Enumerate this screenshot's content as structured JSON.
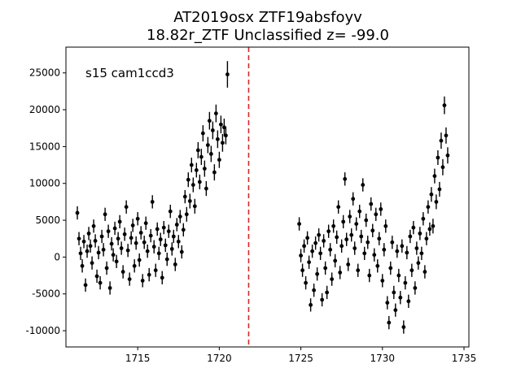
{
  "chart_data": {
    "type": "scatter",
    "title": "AT2019osx  ZTF19absfoyv",
    "subtitle": "18.82r_ZTF Unclassified z= -99.0",
    "annotation": "s15 cam1ccd3",
    "xlabel": "",
    "ylabel": "",
    "xlim": [
      1710.6,
      1735.3
    ],
    "ylim": [
      -12200,
      28500
    ],
    "x_ticks": [
      1715,
      1720,
      1725,
      1730,
      1735
    ],
    "y_ticks": [
      -10000,
      -5000,
      0,
      5000,
      10000,
      15000,
      20000,
      25000
    ],
    "grid": false,
    "marker_color": "#000000",
    "vline": {
      "x": 1721.8,
      "color": "#d62728",
      "style": "dashed"
    },
    "series": [
      {
        "points": [
          [
            1711.3,
            6000,
            900
          ],
          [
            1711.4,
            2500,
            900
          ],
          [
            1711.5,
            500,
            900
          ],
          [
            1711.6,
            -1200,
            900
          ],
          [
            1711.7,
            2100,
            900
          ],
          [
            1711.8,
            -3800,
            900
          ],
          [
            1711.9,
            800,
            900
          ],
          [
            1712.0,
            3200,
            900
          ],
          [
            1712.1,
            1500,
            900
          ],
          [
            1712.2,
            -800,
            900
          ],
          [
            1712.3,
            4200,
            900
          ],
          [
            1712.4,
            2200,
            900
          ],
          [
            1712.5,
            -2600,
            900
          ],
          [
            1712.6,
            600,
            900
          ],
          [
            1712.7,
            -3500,
            900
          ],
          [
            1712.8,
            2800,
            900
          ],
          [
            1712.9,
            1000,
            900
          ],
          [
            1713.0,
            5800,
            900
          ],
          [
            1713.1,
            -1500,
            900
          ],
          [
            1713.2,
            3500,
            900
          ],
          [
            1713.3,
            -4200,
            900
          ],
          [
            1713.4,
            1800,
            900
          ],
          [
            1713.5,
            300,
            900
          ],
          [
            1713.6,
            3900,
            900
          ],
          [
            1713.7,
            -600,
            900
          ],
          [
            1713.8,
            2500,
            900
          ],
          [
            1713.9,
            4800,
            900
          ],
          [
            1714.0,
            1200,
            900
          ],
          [
            1714.1,
            -2000,
            900
          ],
          [
            1714.2,
            3100,
            900
          ],
          [
            1714.3,
            6800,
            900
          ],
          [
            1714.4,
            900,
            900
          ],
          [
            1714.5,
            -3000,
            900
          ],
          [
            1714.6,
            2600,
            900
          ],
          [
            1714.7,
            4300,
            900
          ],
          [
            1714.8,
            -1200,
            900
          ],
          [
            1714.9,
            1900,
            900
          ],
          [
            1715.0,
            5200,
            900
          ],
          [
            1715.1,
            -400,
            900
          ],
          [
            1715.2,
            3300,
            900
          ],
          [
            1715.3,
            -3200,
            900
          ],
          [
            1715.4,
            2000,
            900
          ],
          [
            1715.5,
            4600,
            900
          ],
          [
            1715.6,
            800,
            900
          ],
          [
            1715.7,
            -2400,
            900
          ],
          [
            1715.8,
            2900,
            900
          ],
          [
            1715.9,
            7500,
            900
          ],
          [
            1716.0,
            1400,
            900
          ],
          [
            1716.1,
            -1800,
            900
          ],
          [
            1716.2,
            3800,
            900
          ],
          [
            1716.3,
            500,
            900
          ],
          [
            1716.4,
            2400,
            900
          ],
          [
            1716.5,
            -2800,
            900
          ],
          [
            1716.6,
            4000,
            900
          ],
          [
            1716.7,
            1600,
            900
          ],
          [
            1716.8,
            -300,
            900
          ],
          [
            1716.9,
            3500,
            900
          ],
          [
            1717.0,
            6200,
            900
          ],
          [
            1717.1,
            1100,
            900
          ],
          [
            1717.2,
            2800,
            900
          ],
          [
            1717.3,
            -1000,
            900
          ],
          [
            1717.4,
            4400,
            900
          ],
          [
            1717.5,
            2100,
            900
          ],
          [
            1717.6,
            5500,
            900
          ],
          [
            1717.7,
            700,
            900
          ],
          [
            1717.8,
            3700,
            900
          ],
          [
            1717.9,
            8200,
            900
          ],
          [
            1718.0,
            5800,
            1000
          ],
          [
            1718.1,
            10500,
            1000
          ],
          [
            1718.2,
            7600,
            1000
          ],
          [
            1718.3,
            12500,
            1000
          ],
          [
            1718.4,
            9800,
            1000
          ],
          [
            1718.5,
            6900,
            1000
          ],
          [
            1718.6,
            11800,
            1000
          ],
          [
            1718.7,
            14500,
            1100
          ],
          [
            1718.8,
            10200,
            1000
          ],
          [
            1718.9,
            13600,
            1100
          ],
          [
            1719.0,
            16800,
            1100
          ],
          [
            1719.1,
            12000,
            1100
          ],
          [
            1719.2,
            9300,
            1000
          ],
          [
            1719.3,
            15200,
            1100
          ],
          [
            1719.4,
            18500,
            1200
          ],
          [
            1719.5,
            14000,
            1100
          ],
          [
            1719.6,
            17200,
            1200
          ],
          [
            1719.7,
            11500,
            1100
          ],
          [
            1719.8,
            19500,
            1200
          ],
          [
            1719.9,
            16000,
            1200
          ],
          [
            1720.0,
            13200,
            1100
          ],
          [
            1720.1,
            18000,
            1200
          ],
          [
            1720.2,
            15500,
            1200
          ],
          [
            1720.3,
            17600,
            1200
          ],
          [
            1720.4,
            16500,
            1200
          ],
          [
            1720.5,
            24800,
            1800
          ],
          [
            1724.9,
            4500,
            900
          ],
          [
            1725.0,
            200,
            900
          ],
          [
            1725.1,
            -1800,
            900
          ],
          [
            1725.2,
            1500,
            900
          ],
          [
            1725.3,
            -3500,
            900
          ],
          [
            1725.4,
            2600,
            900
          ],
          [
            1725.5,
            -700,
            900
          ],
          [
            1725.6,
            -6500,
            900
          ],
          [
            1725.7,
            800,
            900
          ],
          [
            1725.8,
            -4500,
            900
          ],
          [
            1725.9,
            1900,
            900
          ],
          [
            1726.0,
            -2300,
            900
          ],
          [
            1726.1,
            3000,
            900
          ],
          [
            1726.2,
            500,
            900
          ],
          [
            1726.3,
            -5800,
            900
          ],
          [
            1726.4,
            2200,
            900
          ],
          [
            1726.5,
            -1500,
            900
          ],
          [
            1726.6,
            -4800,
            900
          ],
          [
            1726.7,
            3500,
            900
          ],
          [
            1726.8,
            1000,
            900
          ],
          [
            1726.9,
            -3000,
            900
          ],
          [
            1727.0,
            4200,
            900
          ],
          [
            1727.1,
            -500,
            900
          ],
          [
            1727.2,
            2700,
            900
          ],
          [
            1727.3,
            6800,
            900
          ],
          [
            1727.4,
            -2100,
            900
          ],
          [
            1727.5,
            1500,
            900
          ],
          [
            1727.6,
            4800,
            900
          ],
          [
            1727.7,
            10600,
            900
          ],
          [
            1727.8,
            2400,
            900
          ],
          [
            1727.9,
            -1000,
            900
          ],
          [
            1728.0,
            5500,
            900
          ],
          [
            1728.1,
            3000,
            900
          ],
          [
            1728.2,
            7900,
            900
          ],
          [
            1728.3,
            1200,
            900
          ],
          [
            1728.4,
            4500,
            900
          ],
          [
            1728.5,
            -1800,
            900
          ],
          [
            1728.6,
            6200,
            900
          ],
          [
            1728.7,
            2800,
            900
          ],
          [
            1728.8,
            9800,
            900
          ],
          [
            1728.9,
            500,
            900
          ],
          [
            1729.0,
            5000,
            900
          ],
          [
            1729.1,
            2000,
            900
          ],
          [
            1729.2,
            -2500,
            900
          ],
          [
            1729.3,
            7200,
            900
          ],
          [
            1729.4,
            3600,
            900
          ],
          [
            1729.5,
            300,
            900
          ],
          [
            1729.6,
            5800,
            900
          ],
          [
            1729.7,
            -1200,
            900
          ],
          [
            1729.8,
            2500,
            900
          ],
          [
            1729.9,
            6500,
            900
          ],
          [
            1730.0,
            -3200,
            900
          ],
          [
            1730.1,
            1000,
            900
          ],
          [
            1730.2,
            4200,
            900
          ],
          [
            1730.3,
            -6200,
            900
          ],
          [
            1730.4,
            -8900,
            900
          ],
          [
            1730.5,
            -1500,
            900
          ],
          [
            1730.6,
            2000,
            900
          ],
          [
            1730.7,
            -4800,
            900
          ],
          [
            1730.8,
            -7200,
            900
          ],
          [
            1730.9,
            800,
            900
          ],
          [
            1731.0,
            -2500,
            900
          ],
          [
            1731.1,
            -5500,
            900
          ],
          [
            1731.2,
            1500,
            900
          ],
          [
            1731.3,
            -9500,
            900
          ],
          [
            1731.4,
            -3500,
            900
          ],
          [
            1731.5,
            600,
            900
          ],
          [
            1731.6,
            -6000,
            900
          ],
          [
            1731.7,
            2800,
            900
          ],
          [
            1731.8,
            -1800,
            900
          ],
          [
            1731.9,
            4000,
            900
          ],
          [
            1732.0,
            -4200,
            900
          ],
          [
            1732.1,
            1200,
            900
          ],
          [
            1732.2,
            -800,
            900
          ],
          [
            1732.3,
            3200,
            900
          ],
          [
            1732.4,
            500,
            900
          ],
          [
            1732.5,
            5200,
            900
          ],
          [
            1732.6,
            -2000,
            900
          ],
          [
            1732.7,
            2500,
            900
          ],
          [
            1732.8,
            6800,
            900
          ],
          [
            1732.9,
            3800,
            900
          ],
          [
            1733.0,
            8500,
            1000
          ],
          [
            1733.1,
            4200,
            1000
          ],
          [
            1733.2,
            11000,
            1000
          ],
          [
            1733.3,
            7500,
            1000
          ],
          [
            1733.4,
            13500,
            1000
          ],
          [
            1733.5,
            9200,
            1000
          ],
          [
            1733.6,
            15800,
            1100
          ],
          [
            1733.7,
            12200,
            1100
          ],
          [
            1733.8,
            20600,
            1200
          ],
          [
            1733.9,
            16500,
            1100
          ],
          [
            1734.0,
            13800,
            1100
          ]
        ]
      }
    ]
  }
}
